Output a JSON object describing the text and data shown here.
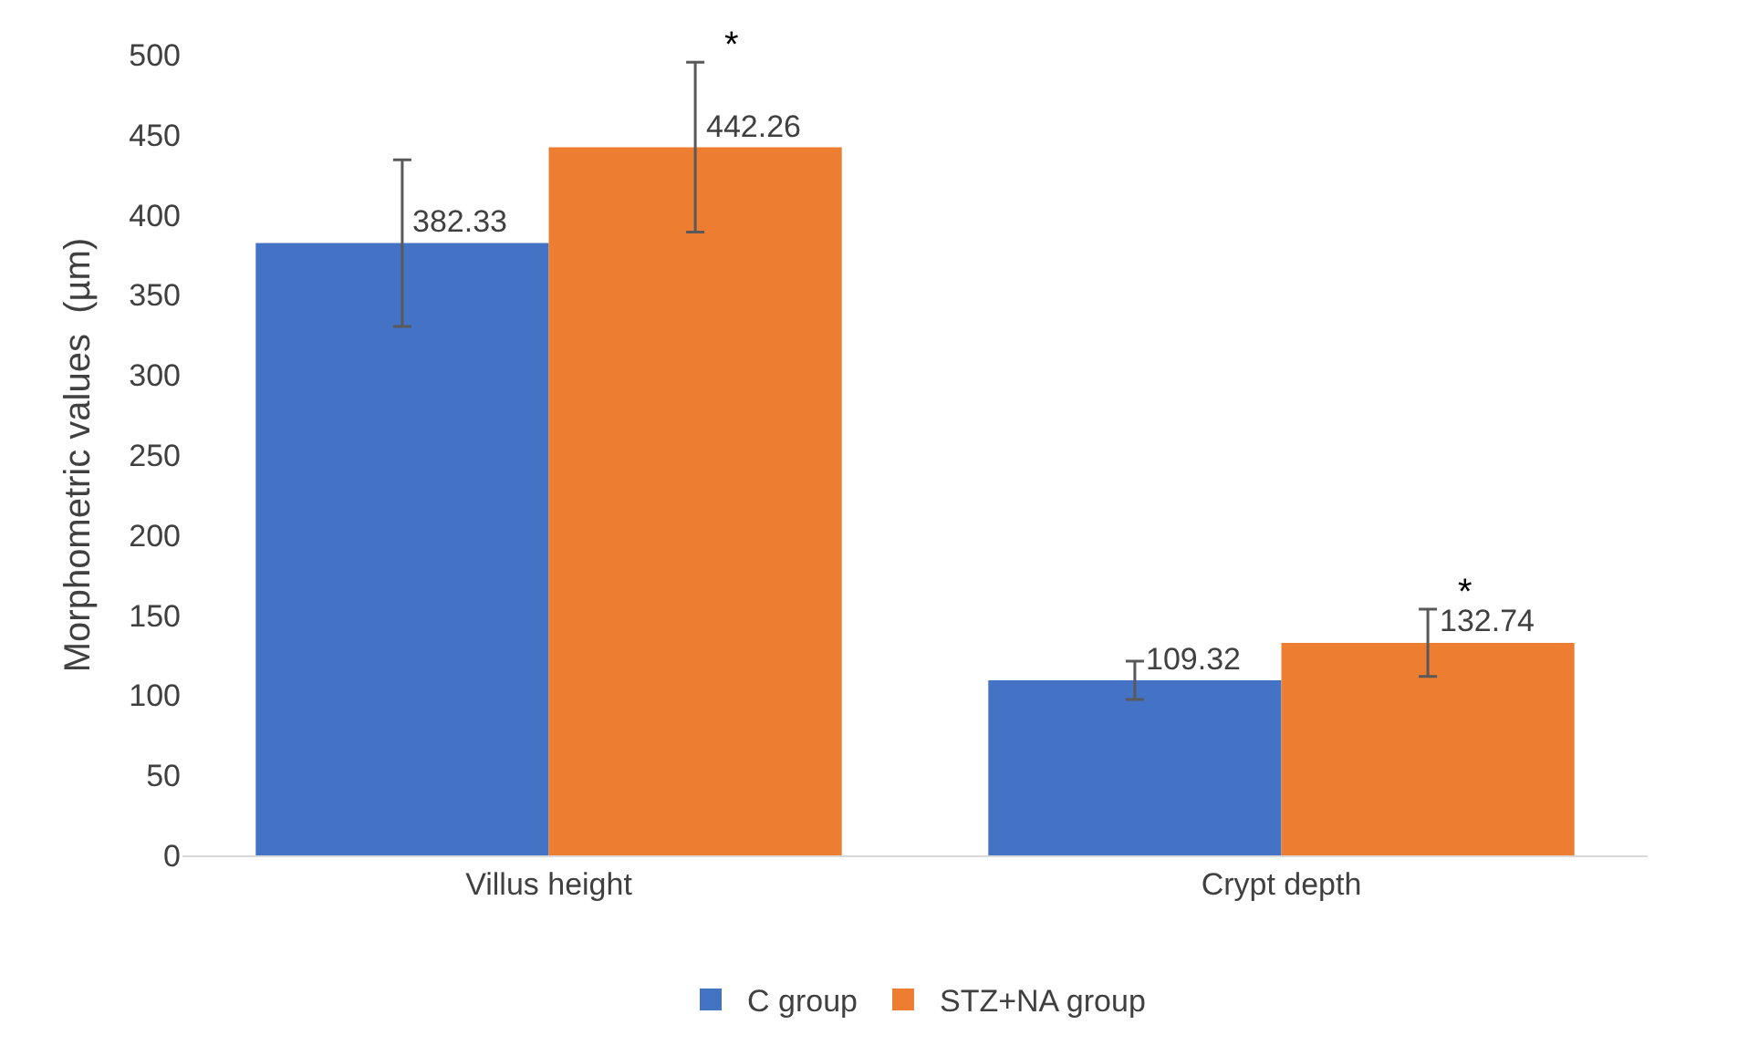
{
  "chart_data": {
    "type": "bar",
    "ylabel": "Morphometric values  (µm)",
    "categories": [
      "Villus height",
      "Crypt depth"
    ],
    "series": [
      {
        "name": "C group",
        "color": "#4472c4",
        "values": [
          382.33,
          109.32
        ],
        "errors": [
          52,
          12
        ]
      },
      {
        "name": "STZ+NA group",
        "color": "#ed7d31",
        "values": [
          442.26,
          132.74
        ],
        "errors": [
          53,
          21
        ]
      }
    ],
    "annotations": [
      "*",
      "*"
    ],
    "ylim": [
      0,
      500
    ],
    "yticks": [
      0,
      50,
      100,
      150,
      200,
      250,
      300,
      350,
      400,
      450,
      500
    ],
    "grid": false,
    "legend": "bottom",
    "data_labels": true
  }
}
